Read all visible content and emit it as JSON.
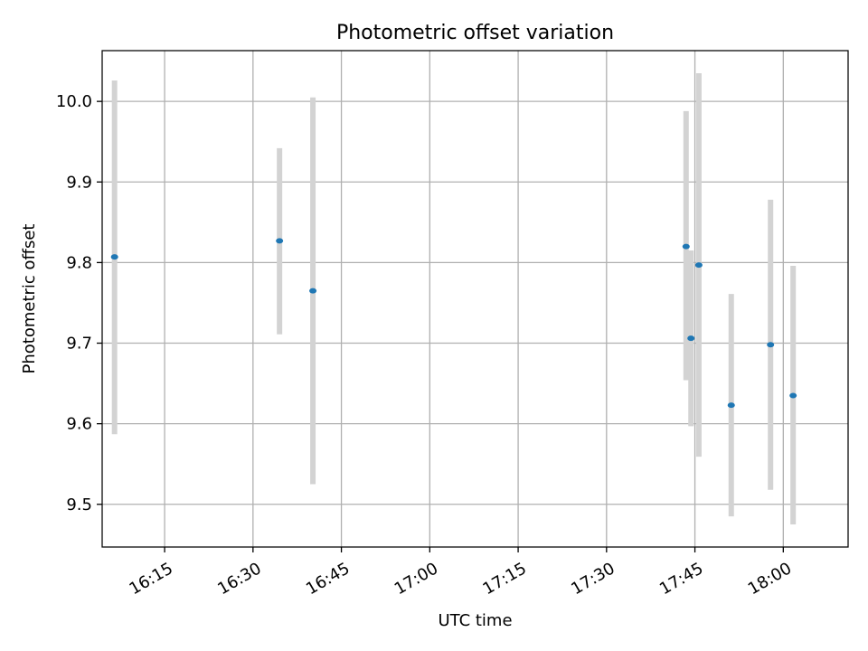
{
  "chart_data": {
    "type": "scatter",
    "title": "Photometric offset variation",
    "xlabel": "UTC time",
    "ylabel": "Photometric offset",
    "xlim": [
      "16:04:24",
      "18:11:00"
    ],
    "ylim": [
      9.447,
      10.063
    ],
    "x_ticks": [
      "16:15",
      "16:30",
      "16:45",
      "17:00",
      "17:15",
      "17:30",
      "17:45",
      "18:00"
    ],
    "y_ticks": [
      9.5,
      9.6,
      9.7,
      9.8,
      9.9,
      10.0
    ],
    "grid": true,
    "point_color": "#1f77b4",
    "errorbar_color": "#d3d3d3",
    "points": [
      {
        "x": "16:06:30",
        "y": 9.807,
        "ylow": 9.587,
        "yhigh": 10.026
      },
      {
        "x": "16:34:30",
        "y": 9.827,
        "ylow": 9.711,
        "yhigh": 9.942
      },
      {
        "x": "16:40:10",
        "y": 9.765,
        "ylow": 9.525,
        "yhigh": 10.005
      },
      {
        "x": "17:43:30",
        "y": 9.82,
        "ylow": 9.654,
        "yhigh": 9.988
      },
      {
        "x": "17:44:20",
        "y": 9.706,
        "ylow": 9.597,
        "yhigh": 9.815
      },
      {
        "x": "17:45:40",
        "y": 9.797,
        "ylow": 9.559,
        "yhigh": 10.035
      },
      {
        "x": "17:51:10",
        "y": 9.623,
        "ylow": 9.485,
        "yhigh": 9.761
      },
      {
        "x": "17:57:50",
        "y": 9.698,
        "ylow": 9.518,
        "yhigh": 9.878
      },
      {
        "x": "18:01:40",
        "y": 9.635,
        "ylow": 9.475,
        "yhigh": 9.796
      }
    ]
  }
}
